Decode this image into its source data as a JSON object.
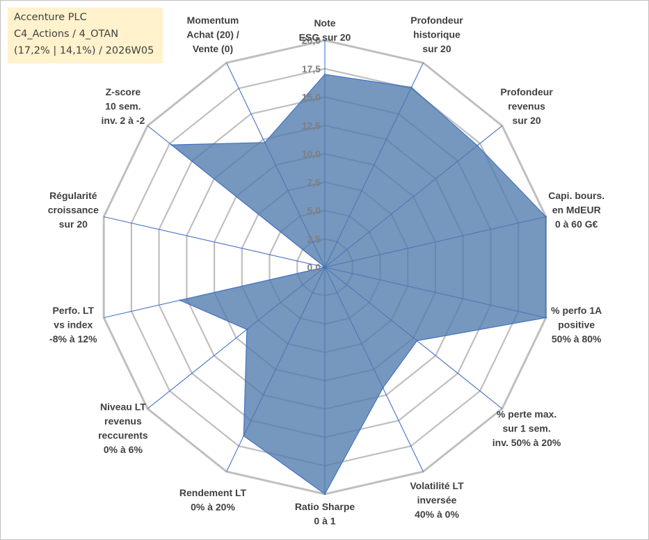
{
  "title_box": {
    "line1": "Accenture PLC",
    "line2": "C4_Actions / 4_OTAN",
    "line3": "(17,2% | 14,1%) / 2026W05"
  },
  "chart_data": {
    "type": "radar",
    "title": "Accenture PLC",
    "subtitle": [
      "C4_Actions / 4_OTAN",
      "(17,2% | 14,1%) / 2026W05"
    ],
    "rmin": 0,
    "rmax": 20,
    "ticks": [
      "0,0",
      "2,5",
      "5,0",
      "7,5",
      "10,0",
      "12,5",
      "15,0",
      "17,5",
      "20,0"
    ],
    "tick_values": [
      0,
      2.5,
      5,
      7.5,
      10,
      12.5,
      15,
      17.5,
      20
    ],
    "categories": [
      [
        "Note",
        "ESG sur 20"
      ],
      [
        "Profondeur",
        "historique",
        "sur 20"
      ],
      [
        "Profondeur",
        "revenus",
        "sur 20"
      ],
      [
        "Capi. bours.",
        "en MdEUR",
        "0 à 60 G€"
      ],
      [
        "% perfo 1A",
        "positive",
        "50% à 80%"
      ],
      [
        "% perte max.",
        "sur 1 sem.",
        "inv. 50% à 20%"
      ],
      [
        "Volatilité LT",
        "inversée",
        "40% à 0%"
      ],
      [
        "Ratio Sharpe",
        "0 à 1"
      ],
      [
        "Rendement LT",
        "0% à 20%"
      ],
      [
        "Niveau LT",
        "revenus",
        "reccurents",
        "0% à 6%"
      ],
      [
        "Perfo. LT",
        "vs index",
        "-8% à 12%"
      ],
      [
        "Régularité",
        "croissance",
        "sur 20"
      ],
      [
        "Z-score",
        "10 sem.",
        "inv. 2 à -2"
      ],
      [
        "Momentum",
        "Achat (20) /",
        "Vente (0)"
      ]
    ],
    "series": [
      {
        "name": "Accenture PLC",
        "values": [
          17.0,
          17.6,
          17.2,
          20.0,
          20.0,
          10.4,
          11.8,
          20.0,
          16.5,
          8.8,
          13.1,
          0.0,
          17.3,
          12.2
        ]
      }
    ],
    "colors": {
      "fill": "#4f7aac",
      "line": "#4472c4",
      "grid": "#bfbfbf",
      "axis": "#4472c4",
      "label": "#404040",
      "tick": "#7f7f7f",
      "title_bg": "#fff2cc"
    }
  }
}
